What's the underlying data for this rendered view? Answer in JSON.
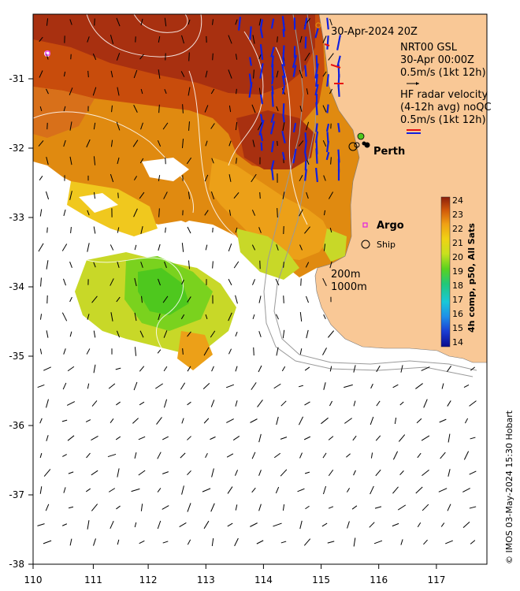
{
  "map": {
    "title_datetime": "30-Apr-2024 20Z",
    "model": {
      "line1": "NRT00 GSL",
      "line2": "30-Apr 00:00Z",
      "scale": "0.5m/s (1kt 12h)"
    },
    "radar": {
      "line1": "HF radar velocity",
      "line2": "(4-12h avg) noQC",
      "scale": "0.5m/s (1kt 12h)"
    },
    "labels": {
      "perth": "Perth",
      "argo": "Argo",
      "ship": "Ship",
      "isobath_200": "200m",
      "isobath_1000": "1000m"
    },
    "x_ticks": [
      "110",
      "111",
      "112",
      "113",
      "114",
      "115",
      "116",
      "117"
    ],
    "y_ticks": [
      "-31",
      "-32",
      "-33",
      "-34",
      "-35",
      "-36",
      "-37",
      "-38"
    ],
    "colorbar": {
      "title": "4h comp, p50, All Sats",
      "ticks": [
        "24",
        "23",
        "22",
        "21",
        "20",
        "19",
        "18",
        "17",
        "16",
        "15",
        "14"
      ],
      "min": 14,
      "max": 24
    },
    "credit": "© IMOS 03-May-2024 15:30 Hobart",
    "colors": {
      "land": "#f9c896",
      "sst_warm": "#a0280a",
      "sst_mid": "#e08a10",
      "sst_cool": "#c8d828",
      "sst_green": "#4ec81e",
      "model_arrow": "#000000",
      "radar_arrow": "#1020e0",
      "radar_arrow_alt": "#e81010",
      "argo_marker": "#e020e0"
    }
  }
}
